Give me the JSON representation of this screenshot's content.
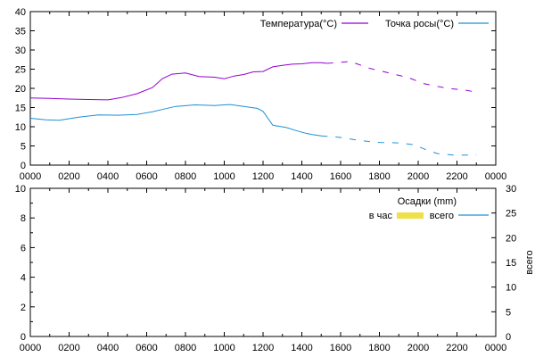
{
  "chart_data": [
    {
      "type": "line",
      "title": "",
      "x_ticks": [
        "0000",
        "0200",
        "0400",
        "0600",
        "0800",
        "1000",
        "1200",
        "1400",
        "1600",
        "1800",
        "2000",
        "2200",
        "0000"
      ],
      "xlim": [
        0,
        24
      ],
      "ylim": [
        0,
        40
      ],
      "y_ticks": [
        "0",
        "5",
        "10",
        "15",
        "20",
        "25",
        "30",
        "35",
        "40"
      ],
      "legend_position": "top-right",
      "series": [
        {
          "name": "Температура(°C)",
          "color": "#9400d3",
          "points": [
            [
              0,
              17.5
            ],
            [
              1,
              17.4
            ],
            [
              2,
              17.2
            ],
            [
              3,
              17.1
            ],
            [
              4,
              17.0
            ],
            [
              4.7,
              17.6
            ],
            [
              5.5,
              18.6
            ],
            [
              6.3,
              20.2
            ],
            [
              6.8,
              22.5
            ],
            [
              7.3,
              23.7
            ],
            [
              8.0,
              24.0
            ],
            [
              8.7,
              23.1
            ],
            [
              9.5,
              22.9
            ],
            [
              10.0,
              22.5
            ],
            [
              10.5,
              23.2
            ],
            [
              11.0,
              23.6
            ],
            [
              11.5,
              24.3
            ],
            [
              12.0,
              24.4
            ],
            [
              12.5,
              25.6
            ],
            [
              13.0,
              26.0
            ],
            [
              13.5,
              26.3
            ],
            [
              14.0,
              26.4
            ],
            [
              14.5,
              26.7
            ],
            [
              15.0,
              26.7
            ],
            [
              15.3,
              26.5
            ]
          ],
          "dashed_points": [
            [
              15.3,
              26.5
            ],
            [
              16.5,
              27.0
            ],
            [
              17.5,
              25.2
            ],
            [
              18.5,
              24.0
            ],
            [
              19.5,
              22.8
            ],
            [
              20.3,
              21.2
            ],
            [
              21.5,
              20.0
            ],
            [
              22.5,
              19.5
            ],
            [
              23.0,
              19.0
            ]
          ]
        },
        {
          "name": "Точка росы(°C)",
          "color": "#1e90d6",
          "points": [
            [
              0,
              12.2
            ],
            [
              0.8,
              11.8
            ],
            [
              1.5,
              11.7
            ],
            [
              2.5,
              12.5
            ],
            [
              3.5,
              13.1
            ],
            [
              4.5,
              13.0
            ],
            [
              5.5,
              13.2
            ],
            [
              6.3,
              13.9
            ],
            [
              6.8,
              14.5
            ],
            [
              7.5,
              15.3
            ],
            [
              8.5,
              15.7
            ],
            [
              9.5,
              15.5
            ],
            [
              10.3,
              15.8
            ],
            [
              11.0,
              15.3
            ],
            [
              11.7,
              14.8
            ],
            [
              12.0,
              14.0
            ],
            [
              12.5,
              10.4
            ],
            [
              13.2,
              9.8
            ],
            [
              13.7,
              9.0
            ],
            [
              14.2,
              8.3
            ],
            [
              14.5,
              8.0
            ],
            [
              15.0,
              7.6
            ]
          ],
          "dashed_points": [
            [
              15.0,
              7.6
            ],
            [
              16.0,
              7.2
            ],
            [
              17.0,
              6.4
            ],
            [
              18.0,
              5.9
            ],
            [
              19.0,
              5.8
            ],
            [
              19.8,
              5.3
            ],
            [
              20.5,
              3.8
            ],
            [
              21.0,
              3.0
            ],
            [
              21.8,
              2.6
            ],
            [
              22.5,
              2.6
            ],
            [
              23.0,
              2.7
            ]
          ]
        }
      ]
    },
    {
      "type": "line",
      "title": "",
      "x_ticks": [
        "0000",
        "0200",
        "0400",
        "0600",
        "0800",
        "1000",
        "1200",
        "1400",
        "1600",
        "1800",
        "2000",
        "2200",
        "0000"
      ],
      "xlim": [
        0,
        24
      ],
      "ylim": [
        0,
        10
      ],
      "y_ticks": [
        "0",
        "2",
        "4",
        "6",
        "8",
        "10"
      ],
      "y2lim": [
        0,
        30
      ],
      "y2_ticks": [
        "0",
        "5",
        "10",
        "15",
        "20",
        "25",
        "30"
      ],
      "y2label": "всего",
      "legend_title": "Осадки (mm)",
      "legend_position": "top-right",
      "series": [
        {
          "name": "в час",
          "color": "#ede04a",
          "style": "bar",
          "values": []
        },
        {
          "name": "всего",
          "color": "#1e90d6",
          "style": "line",
          "values": []
        }
      ]
    }
  ]
}
